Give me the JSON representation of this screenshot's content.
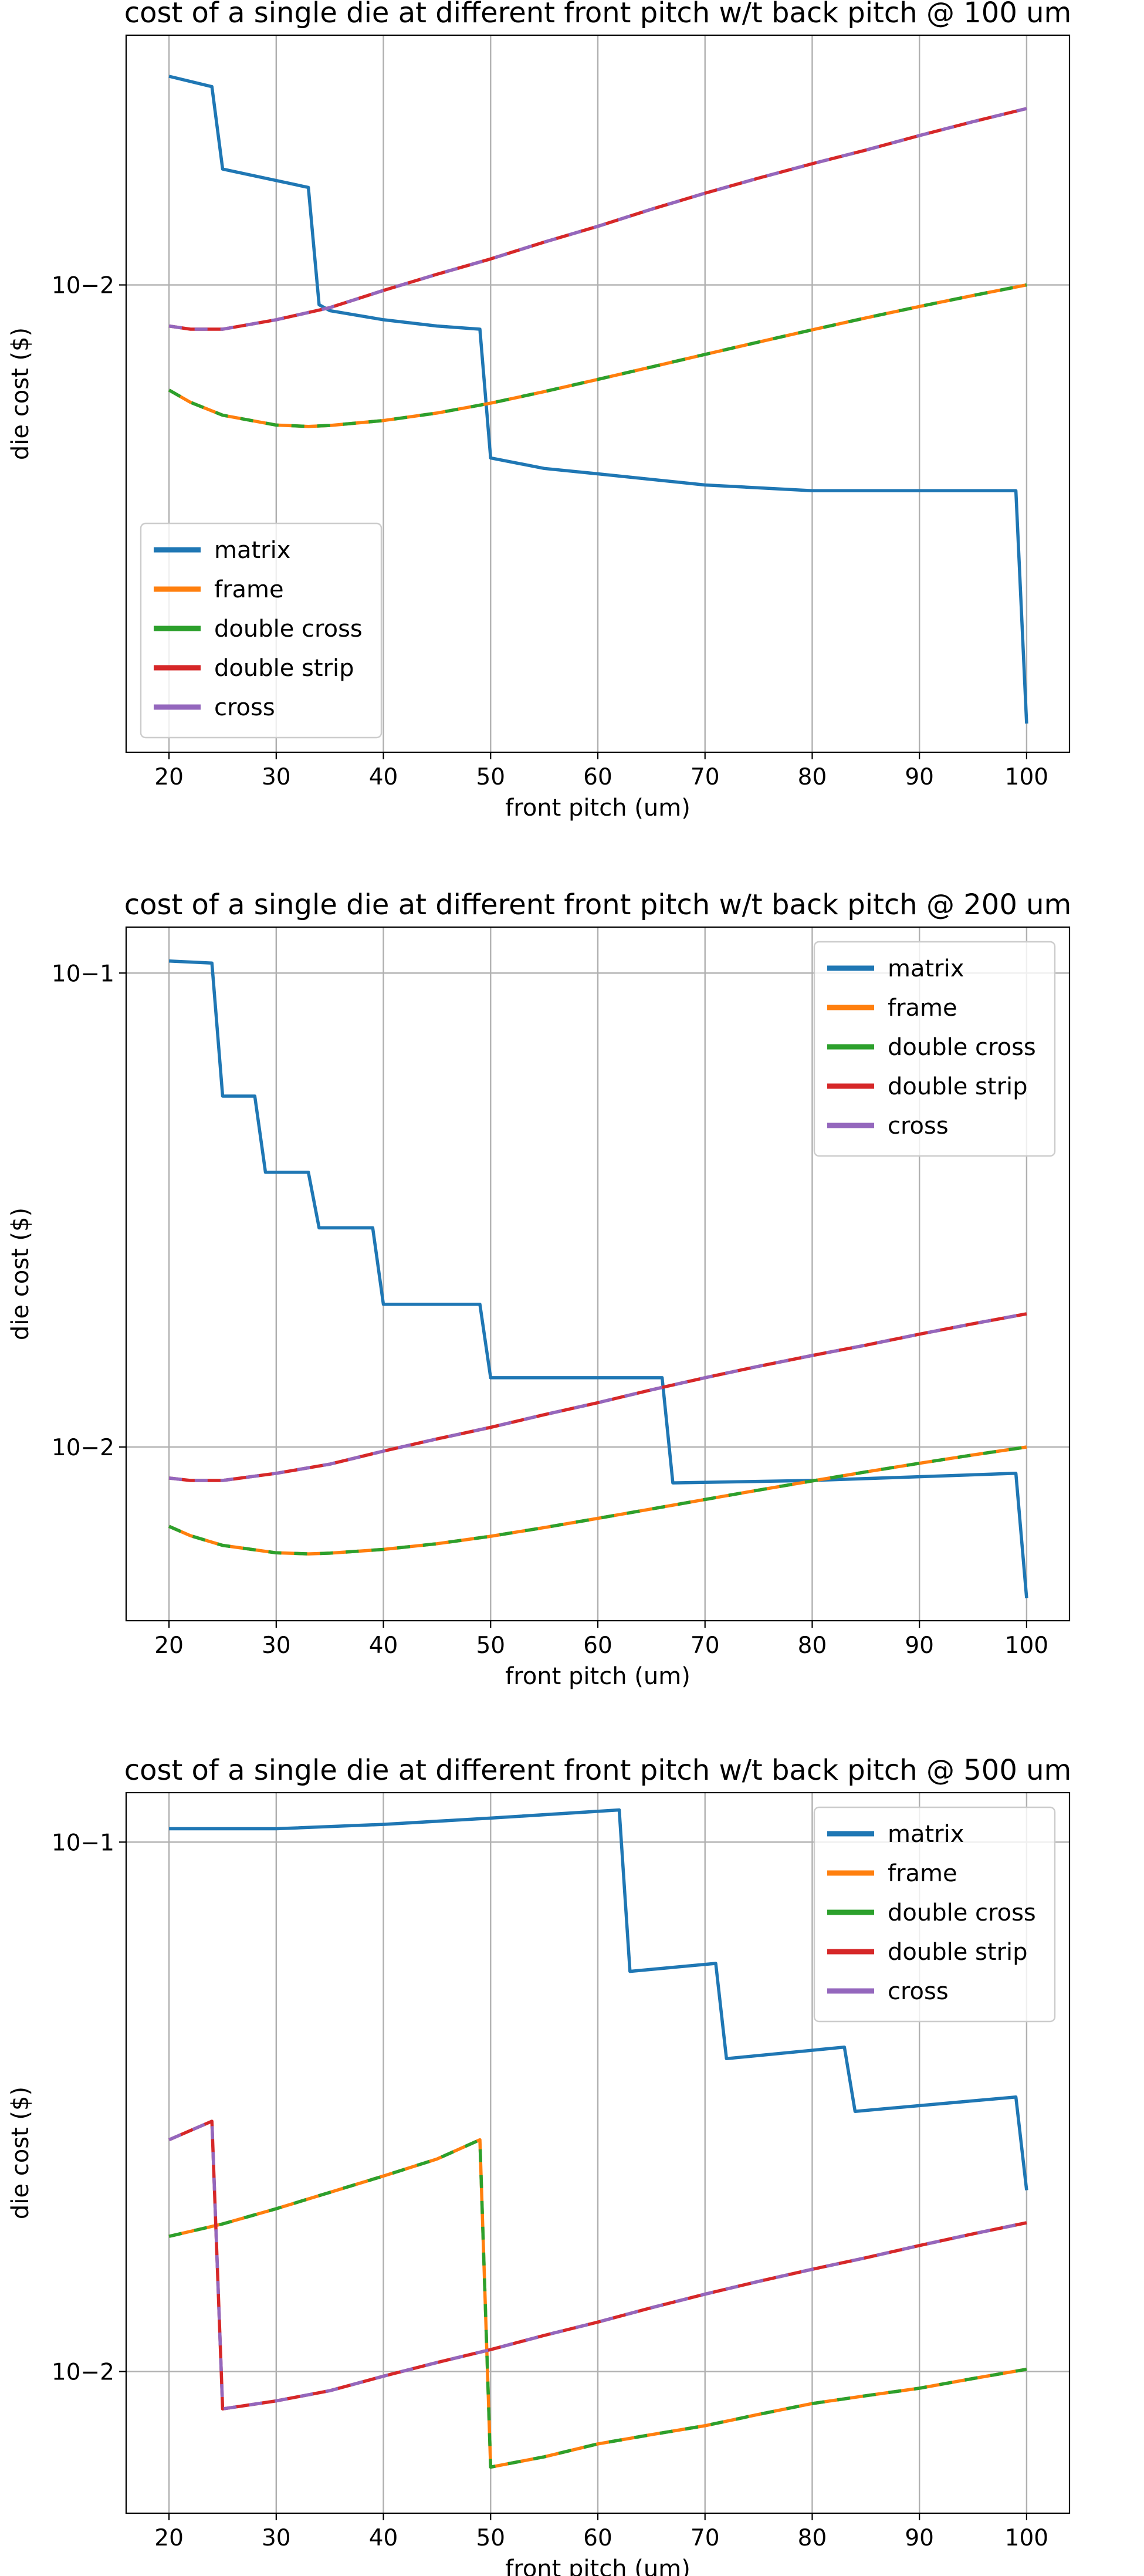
{
  "chart_data": [
    {
      "type": "line",
      "title": "cost of a single die at different front pitch w/t back pitch @ 100 um",
      "xlabel": "front pitch (um)",
      "ylabel": "die cost ($)",
      "xlim": [
        16,
        104
      ],
      "ylim": [
        0.0018,
        0.025
      ],
      "yscale": "log",
      "xticks": [
        20,
        30,
        40,
        50,
        60,
        70,
        80,
        90,
        100
      ],
      "xtick_labels": [
        "20",
        "30",
        "40",
        "50",
        "60",
        "70",
        "80",
        "90",
        "100"
      ],
      "yticks": [
        0.01
      ],
      "ytick_labels": [
        "10−2"
      ],
      "legend_position": "lower-left",
      "series": [
        {
          "name": "matrix",
          "color": "#1f77b4",
          "x": [
            20,
            24,
            25,
            33,
            34,
            35,
            40,
            45,
            49,
            50,
            55,
            60,
            70,
            80,
            90,
            99,
            100
          ],
          "y": [
            0.0215,
            0.0207,
            0.0153,
            0.0143,
            0.0093,
            0.0091,
            0.0088,
            0.0086,
            0.0085,
            0.0053,
            0.0051,
            0.005,
            0.0048,
            0.0047,
            0.0047,
            0.0047,
            0.002
          ]
        },
        {
          "name": "frame",
          "color": "#ff7f0e",
          "x": [
            20,
            22,
            25,
            30,
            33,
            35,
            40,
            45,
            50,
            55,
            60,
            65,
            70,
            75,
            80,
            85,
            90,
            95,
            100
          ],
          "y": [
            0.0068,
            0.0065,
            0.0062,
            0.00598,
            0.00595,
            0.00597,
            0.00608,
            0.00625,
            0.00648,
            0.00676,
            0.00707,
            0.0074,
            0.00775,
            0.00811,
            0.00848,
            0.00886,
            0.00924,
            0.00962,
            0.01
          ]
        },
        {
          "name": "double cross",
          "color": "#2ca02c",
          "x": [
            20,
            22,
            25,
            30,
            33,
            35,
            40,
            45,
            50,
            55,
            60,
            65,
            70,
            75,
            80,
            85,
            90,
            95,
            100
          ],
          "y": [
            0.0068,
            0.0065,
            0.0062,
            0.00598,
            0.00595,
            0.00597,
            0.00608,
            0.00625,
            0.00648,
            0.00676,
            0.00707,
            0.0074,
            0.00775,
            0.00811,
            0.00848,
            0.00886,
            0.00924,
            0.00962,
            0.01
          ]
        },
        {
          "name": "double strip",
          "color": "#d62728",
          "x": [
            20,
            22,
            25,
            30,
            35,
            40,
            45,
            50,
            55,
            60,
            65,
            70,
            75,
            80,
            85,
            90,
            95,
            100
          ],
          "y": [
            0.0086,
            0.0085,
            0.0085,
            0.0088,
            0.0092,
            0.0098,
            0.0104,
            0.011,
            0.0117,
            0.0124,
            0.0132,
            0.014,
            0.0148,
            0.0156,
            0.0164,
            0.0173,
            0.0182,
            0.0191
          ]
        },
        {
          "name": "cross",
          "color": "#9467bd",
          "x": [
            20,
            22,
            25,
            30,
            35,
            40,
            45,
            50,
            55,
            60,
            65,
            70,
            75,
            80,
            85,
            90,
            95,
            100
          ],
          "y": [
            0.0086,
            0.0085,
            0.0085,
            0.0088,
            0.0092,
            0.0098,
            0.0104,
            0.011,
            0.0117,
            0.0124,
            0.0132,
            0.014,
            0.0148,
            0.0156,
            0.0164,
            0.0173,
            0.0182,
            0.0191
          ]
        }
      ]
    },
    {
      "type": "line",
      "title": "cost of a single die at different front pitch w/t back pitch @ 200 um",
      "xlabel": "front pitch (um)",
      "ylabel": "die cost ($)",
      "xlim": [
        16,
        104
      ],
      "ylim": [
        0.0043,
        0.125
      ],
      "yscale": "log",
      "xticks": [
        20,
        30,
        40,
        50,
        60,
        70,
        80,
        90,
        100
      ],
      "xtick_labels": [
        "20",
        "30",
        "40",
        "50",
        "60",
        "70",
        "80",
        "90",
        "100"
      ],
      "yticks": [
        0.01,
        0.1
      ],
      "ytick_labels": [
        "10−2",
        "10−1"
      ],
      "legend_position": "upper-right",
      "series": [
        {
          "name": "matrix",
          "color": "#1f77b4",
          "x": [
            20,
            24,
            25,
            28,
            29,
            33,
            34,
            39,
            40,
            49,
            50,
            66,
            67,
            80,
            99,
            100
          ],
          "y": [
            0.106,
            0.105,
            0.055,
            0.055,
            0.038,
            0.038,
            0.029,
            0.029,
            0.02,
            0.02,
            0.014,
            0.014,
            0.0084,
            0.0085,
            0.0088,
            0.0048
          ]
        },
        {
          "name": "frame",
          "color": "#ff7f0e",
          "x": [
            20,
            22,
            25,
            30,
            33,
            35,
            40,
            45,
            50,
            55,
            60,
            65,
            70,
            75,
            80,
            85,
            90,
            95,
            100
          ],
          "y": [
            0.0068,
            0.0065,
            0.0062,
            0.00598,
            0.00595,
            0.00597,
            0.00608,
            0.00625,
            0.00648,
            0.00676,
            0.00707,
            0.0074,
            0.00775,
            0.00811,
            0.00848,
            0.00886,
            0.00924,
            0.00962,
            0.01
          ]
        },
        {
          "name": "double cross",
          "color": "#2ca02c",
          "x": [
            20,
            22,
            25,
            30,
            33,
            35,
            40,
            45,
            50,
            55,
            60,
            65,
            70,
            75,
            80,
            85,
            90,
            95,
            100
          ],
          "y": [
            0.0068,
            0.0065,
            0.0062,
            0.00598,
            0.00595,
            0.00597,
            0.00608,
            0.00625,
            0.00648,
            0.00676,
            0.00707,
            0.0074,
            0.00775,
            0.00811,
            0.00848,
            0.00886,
            0.00924,
            0.00962,
            0.01
          ]
        },
        {
          "name": "double strip",
          "color": "#d62728",
          "x": [
            20,
            22,
            25,
            30,
            35,
            40,
            45,
            50,
            55,
            60,
            65,
            70,
            75,
            80,
            85,
            90,
            95,
            100
          ],
          "y": [
            0.0086,
            0.0085,
            0.0085,
            0.0088,
            0.0092,
            0.0098,
            0.0104,
            0.011,
            0.0117,
            0.0124,
            0.0132,
            0.014,
            0.0148,
            0.0156,
            0.0164,
            0.0173,
            0.0182,
            0.0191
          ]
        },
        {
          "name": "cross",
          "color": "#9467bd",
          "x": [
            20,
            22,
            25,
            30,
            35,
            40,
            45,
            50,
            55,
            60,
            65,
            70,
            75,
            80,
            85,
            90,
            95,
            100
          ],
          "y": [
            0.0086,
            0.0085,
            0.0085,
            0.0088,
            0.0092,
            0.0098,
            0.0104,
            0.011,
            0.0117,
            0.0124,
            0.0132,
            0.014,
            0.0148,
            0.0156,
            0.0164,
            0.0173,
            0.0182,
            0.0191
          ]
        }
      ]
    },
    {
      "type": "line",
      "title": "cost of a single die at different front pitch w/t back pitch @ 500 um",
      "xlabel": "front pitch (um)",
      "ylabel": "die cost ($)",
      "xlim": [
        16,
        104
      ],
      "ylim": [
        0.0054,
        0.124
      ],
      "yscale": "log",
      "xticks": [
        20,
        30,
        40,
        50,
        60,
        70,
        80,
        90,
        100
      ],
      "xtick_labels": [
        "20",
        "30",
        "40",
        "50",
        "60",
        "70",
        "80",
        "90",
        "100"
      ],
      "yticks": [
        0.01,
        0.1
      ],
      "ytick_labels": [
        "10−2",
        "10−1"
      ],
      "legend_position": "upper-right",
      "series": [
        {
          "name": "matrix",
          "color": "#1f77b4",
          "x": [
            20,
            30,
            40,
            50,
            62,
            63,
            71,
            72,
            83,
            84,
            99,
            100
          ],
          "y": [
            0.106,
            0.106,
            0.108,
            0.111,
            0.115,
            0.057,
            0.059,
            0.039,
            0.041,
            0.031,
            0.033,
            0.022
          ]
        },
        {
          "name": "frame",
          "color": "#ff7f0e",
          "x": [
            20,
            25,
            30,
            35,
            40,
            45,
            49,
            50,
            55,
            60,
            65,
            70,
            75,
            80,
            85,
            90,
            95,
            100
          ],
          "y": [
            0.018,
            0.019,
            0.0203,
            0.0218,
            0.0234,
            0.0252,
            0.0274,
            0.0066,
            0.0069,
            0.0073,
            0.0076,
            0.0079,
            0.0083,
            0.0087,
            0.009,
            0.0093,
            0.0097,
            0.0101
          ]
        },
        {
          "name": "double cross",
          "color": "#2ca02c",
          "x": [
            20,
            25,
            30,
            35,
            40,
            45,
            49,
            50,
            55,
            60,
            65,
            70,
            75,
            80,
            85,
            90,
            95,
            100
          ],
          "y": [
            0.018,
            0.019,
            0.0203,
            0.0218,
            0.0234,
            0.0252,
            0.0274,
            0.0066,
            0.0069,
            0.0073,
            0.0076,
            0.0079,
            0.0083,
            0.0087,
            0.009,
            0.0093,
            0.0097,
            0.0101
          ]
        },
        {
          "name": "double strip",
          "color": "#d62728",
          "x": [
            20,
            24,
            25,
            30,
            35,
            40,
            45,
            50,
            55,
            60,
            65,
            70,
            75,
            80,
            85,
            90,
            95,
            100
          ],
          "y": [
            0.0274,
            0.0297,
            0.0085,
            0.0088,
            0.0092,
            0.0098,
            0.0104,
            0.011,
            0.0117,
            0.0124,
            0.0132,
            0.014,
            0.0148,
            0.0156,
            0.0164,
            0.0173,
            0.0182,
            0.0191
          ]
        },
        {
          "name": "cross",
          "color": "#9467bd",
          "x": [
            20,
            24,
            25,
            30,
            35,
            40,
            45,
            50,
            55,
            60,
            65,
            70,
            75,
            80,
            85,
            90,
            95,
            100
          ],
          "y": [
            0.0274,
            0.0297,
            0.0085,
            0.0088,
            0.0092,
            0.0098,
            0.0104,
            0.011,
            0.0117,
            0.0124,
            0.0132,
            0.014,
            0.0148,
            0.0156,
            0.0164,
            0.0173,
            0.0182,
            0.0191
          ]
        }
      ]
    }
  ]
}
